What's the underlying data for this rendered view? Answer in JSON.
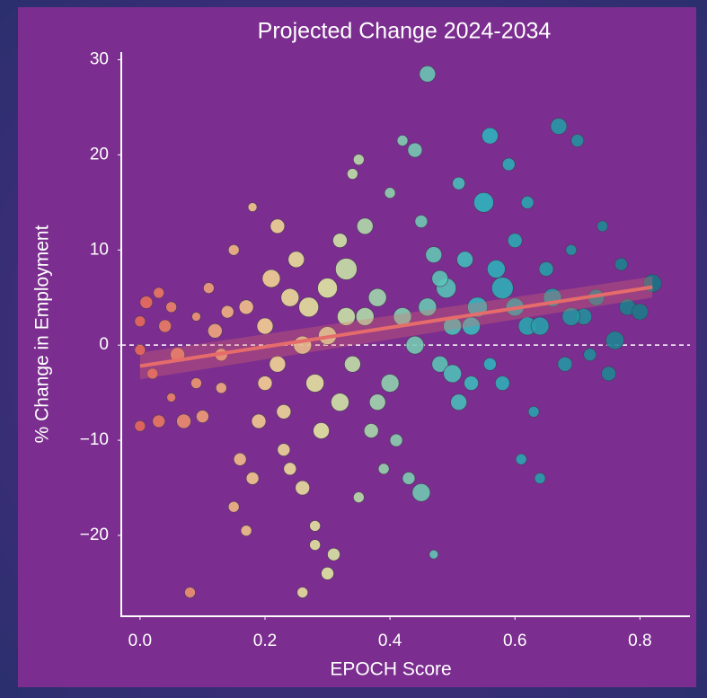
{
  "chart_data": {
    "type": "scatter",
    "title": "Projected Change 2024-2034",
    "x_label": "EPOCH Score",
    "y_label": "% Change in Employment",
    "xlim": [
      -0.03,
      0.88
    ],
    "ylim": [
      -28.5,
      30.8
    ],
    "xticks": [
      {
        "value": 0,
        "label": "0.0"
      },
      {
        "value": 0.2,
        "label": "0.2"
      },
      {
        "value": 0.4,
        "label": "0.4"
      },
      {
        "value": 0.6,
        "label": "0.6"
      },
      {
        "value": 0.8,
        "label": "0.8"
      }
    ],
    "yticks": [
      {
        "value": -20,
        "label": "−20"
      },
      {
        "value": -10,
        "label": "−10"
      },
      0,
      10,
      20,
      30
    ],
    "grid": false,
    "hline": 0,
    "colormap": [
      {
        "value": 0,
        "color": "#e8695a"
      },
      {
        "value": 0.2,
        "color": "#f3cf92"
      },
      {
        "value": 0.3,
        "color": "#e0e7a3"
      },
      {
        "value": 0.4,
        "color": "#90d2ae"
      },
      {
        "value": 0.55,
        "color": "#2fb5bd"
      },
      {
        "value": 0.82,
        "color": "#1a7686"
      }
    ],
    "x": [
      0.0,
      0.0,
      0.01,
      0.02,
      0.03,
      0.04,
      0.05,
      0.05,
      0.0,
      0.03,
      0.06,
      0.07,
      0.1,
      0.09,
      0.11,
      0.08,
      0.12,
      0.13,
      0.14,
      0.15,
      0.16,
      0.15,
      0.17,
      0.18,
      0.18,
      0.2,
      0.21,
      0.22,
      0.23,
      0.24,
      0.25,
      0.26,
      0.27,
      0.28,
      0.28,
      0.3,
      0.26,
      0.31,
      0.3,
      0.32,
      0.33,
      0.34,
      0.35,
      0.34,
      0.35,
      0.36,
      0.37,
      0.38,
      0.39,
      0.4,
      0.41,
      0.42,
      0.42,
      0.43,
      0.44,
      0.45,
      0.45,
      0.46,
      0.47,
      0.47,
      0.48,
      0.49,
      0.5,
      0.51,
      0.51,
      0.52,
      0.53,
      0.54,
      0.55,
      0.56,
      0.56,
      0.57,
      0.58,
      0.58,
      0.59,
      0.6,
      0.61,
      0.62,
      0.62,
      0.63,
      0.64,
      0.65,
      0.66,
      0.67,
      0.68,
      0.69,
      0.7,
      0.71,
      0.72,
      0.73,
      0.74,
      0.75,
      0.76,
      0.77,
      0.78,
      0.8,
      0.82,
      0.2,
      0.22,
      0.24,
      0.26,
      0.28,
      0.3,
      0.32,
      0.19,
      0.23,
      0.29,
      0.36,
      0.4,
      0.44,
      0.46,
      0.5,
      0.53,
      0.6,
      0.64,
      0.69,
      0.33,
      0.17,
      0.13,
      0.09,
      0.38,
      0.48
    ],
    "y": [
      2.5,
      -0.5,
      4.5,
      -3,
      5.5,
      2,
      4,
      -5.5,
      -8.5,
      -8,
      -1,
      -8,
      -7.5,
      3,
      6,
      -26,
      1.5,
      -4.5,
      3.5,
      10,
      -12,
      -17,
      -19.5,
      14.5,
      -14,
      -4,
      7,
      12.5,
      -11,
      -13,
      9,
      -15,
      4,
      -19,
      -21,
      -24,
      -26,
      -22,
      6,
      11,
      8,
      18,
      19.5,
      -2,
      -16,
      12.5,
      -9,
      5,
      -13,
      16,
      -10,
      3,
      21.5,
      -14,
      20.5,
      13,
      -15.5,
      28.5,
      -22,
      9.5,
      -2,
      6,
      2,
      17,
      -6,
      9,
      -4,
      4,
      15,
      22,
      -2,
      8,
      6,
      -4,
      19,
      11,
      -12,
      15,
      2,
      -7,
      -14,
      8,
      5,
      23,
      -2,
      10,
      21.5,
      3,
      -1,
      5,
      12.5,
      -3,
      0.5,
      8.5,
      4,
      3.5,
      6.5,
      2,
      -2,
      5,
      0,
      -4,
      1,
      -6,
      -8,
      -7,
      -9,
      3,
      -4,
      0,
      4,
      -3,
      2,
      4,
      2,
      3,
      3,
      4,
      -1,
      -4,
      -6,
      7
    ],
    "sizes": [
      6,
      6,
      7,
      6,
      6,
      7,
      6,
      5,
      6,
      7,
      8,
      8,
      7,
      5,
      6,
      6,
      8,
      6,
      7,
      6,
      7,
      6,
      6,
      5,
      7,
      8,
      10,
      8,
      7,
      7,
      9,
      8,
      11,
      6,
      6,
      7,
      6,
      7,
      11,
      8,
      12,
      6,
      6,
      9,
      6,
      9,
      8,
      10,
      6,
      6,
      7,
      10,
      6,
      7,
      8,
      7,
      10,
      9,
      5,
      9,
      9,
      11,
      10,
      7,
      9,
      9,
      8,
      11,
      11,
      9,
      7,
      10,
      12,
      8,
      7,
      8,
      6,
      7,
      10,
      6,
      6,
      8,
      10,
      9,
      8,
      6,
      7,
      9,
      7,
      9,
      6,
      8,
      10,
      7,
      9,
      9,
      10,
      9,
      9,
      10,
      10,
      10,
      10,
      10,
      8,
      8,
      9,
      10,
      10,
      10,
      10,
      10,
      10,
      10,
      10,
      10,
      10,
      8,
      7,
      6,
      9,
      9
    ],
    "trend": {
      "color": "#e56c6a",
      "x": [
        0,
        0.82
      ],
      "y": [
        -2.2,
        6.1
      ],
      "lower": [
        -3.6,
        5
      ],
      "upper": [
        -0.8,
        7.2
      ]
    }
  }
}
